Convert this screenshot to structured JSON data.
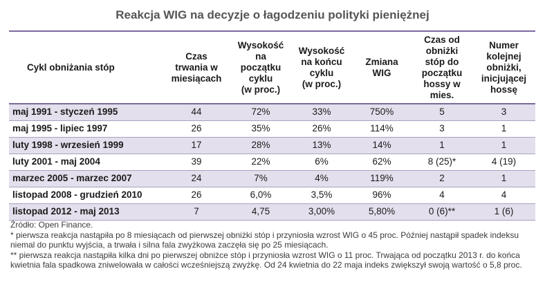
{
  "title": "Reakcja WIG na decyzje o łagodzeniu polityki pieniężnej",
  "headers": [
    "Cykl obniżania stóp",
    "Czas\ntrwania w\nmiesiącach",
    "Wysokość\nna\npoczątku\ncyklu\n(w proc.)",
    "Wysokość\nna końcu\ncyklu\n(w proc.)",
    "Zmiana\nWIG",
    "Czas od\nobniżki\nstóp do\npoczątku\nhossy w\nmies.",
    "Numer\nkolejnej\nobniżki,\ninicjującej\nhossę"
  ],
  "rows": [
    [
      "maj 1991 - styczeń 1995",
      "44",
      "72%",
      "33%",
      "750%",
      "5",
      "3"
    ],
    [
      "maj 1995 - lipiec 1997",
      "26",
      "35%",
      "26%",
      "114%",
      "3",
      "1"
    ],
    [
      "luty 1998 - wrzesień 1999",
      "17",
      "28%",
      "13%",
      "14%",
      "1",
      "1"
    ],
    [
      "luty 2001 - maj 2004",
      "39",
      "22%",
      "6%",
      "62%",
      "8 (25)*",
      "4 (19)"
    ],
    [
      "marzec 2005 - marzec 2007",
      "24",
      "7%",
      "4%",
      "119%",
      "2",
      "1"
    ],
    [
      "listopad 2008 - grudzień 2010",
      "26",
      "6,0%",
      "3,5%",
      "96%",
      "4",
      "4"
    ],
    [
      "listopad 2012 - maj 2013",
      "7",
      "4,75",
      "3,00%",
      "5,80%",
      "0 (6)**",
      "1 (6)"
    ]
  ],
  "notes": [
    "Źródło: Open Finance.",
    "* pierwsza reakcja nastąpiła po 8 miesiącach od pierwszej obniżki stóp i przyniosła wzrost WIG o 45 proc. Później nastąpił spadek indeksu niemal do punktu wyjścia, a trwała i silna fala zwyżkowa zaczęła się po 25 miesiącach.",
    "** pierwsza reakcja nastąpiła kilka dni po pierwszej obniżce stóp i przyniosła wzrost WIG o 11 proc. Trwająca od początku 2013 r. do końca kwietnia fala spadkowa zniwelowała w całości wcześniejszą zwyżkę. Od 24 kwietnia do 22 maja indeks zwiększył swoją wartość o 5,8 proc."
  ],
  "colors": {
    "shade": "#e3dfec",
    "rule": "#7b6a9e"
  }
}
